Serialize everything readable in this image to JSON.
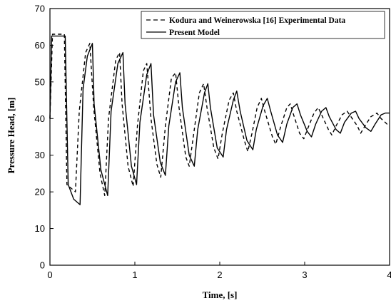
{
  "chart_data": {
    "type": "line",
    "title": "",
    "xlabel": "Time, [s]",
    "ylabel": "Pressure Head, [m]",
    "xlim": [
      0,
      4
    ],
    "ylim": [
      0,
      70
    ],
    "x_ticks": [
      0,
      1,
      2,
      3,
      4
    ],
    "y_ticks": [
      0,
      10,
      20,
      30,
      40,
      50,
      60,
      70
    ],
    "grid": false,
    "legend_position": "top-right",
    "series": [
      {
        "name": "Kodura and Weinerowska [16] Experimental Data",
        "style": "dashed",
        "color": "#000000",
        "points": [
          [
            0.0,
            40.0
          ],
          [
            0.03,
            63.0
          ],
          [
            0.17,
            63.0
          ],
          [
            0.2,
            22.0
          ],
          [
            0.3,
            20.0
          ],
          [
            0.345,
            42.0
          ],
          [
            0.42,
            58.0
          ],
          [
            0.47,
            60.5
          ],
          [
            0.515,
            43.0
          ],
          [
            0.59,
            25.0
          ],
          [
            0.645,
            19.0
          ],
          [
            0.69,
            40.0
          ],
          [
            0.775,
            56.0
          ],
          [
            0.82,
            58.0
          ],
          [
            0.85,
            44.0
          ],
          [
            0.92,
            27.0
          ],
          [
            0.98,
            21.5
          ],
          [
            1.03,
            38.0
          ],
          [
            1.1,
            53.0
          ],
          [
            1.14,
            55.0
          ],
          [
            1.19,
            40.0
          ],
          [
            1.26,
            27.5
          ],
          [
            1.305,
            24.0
          ],
          [
            1.36,
            38.0
          ],
          [
            1.43,
            51.0
          ],
          [
            1.48,
            52.5
          ],
          [
            1.52,
            43.0
          ],
          [
            1.6,
            29.5
          ],
          [
            1.64,
            27.0
          ],
          [
            1.7,
            37.0
          ],
          [
            1.76,
            47.0
          ],
          [
            1.81,
            49.5
          ],
          [
            1.85,
            43.0
          ],
          [
            1.93,
            32.0
          ],
          [
            1.98,
            29.0
          ],
          [
            2.03,
            36.0
          ],
          [
            2.11,
            45.0
          ],
          [
            2.16,
            47.0
          ],
          [
            2.2,
            42.0
          ],
          [
            2.29,
            34.0
          ],
          [
            2.33,
            31.0
          ],
          [
            2.38,
            36.0
          ],
          [
            2.44,
            43.0
          ],
          [
            2.49,
            45.5
          ],
          [
            2.53,
            42.0
          ],
          [
            2.62,
            35.0
          ],
          [
            2.66,
            33.0
          ],
          [
            2.72,
            38.0
          ],
          [
            2.79,
            43.0
          ],
          [
            2.83,
            44.0
          ],
          [
            2.87,
            41.0
          ],
          [
            2.94,
            36.0
          ],
          [
            2.99,
            34.5
          ],
          [
            3.04,
            37.5
          ],
          [
            3.11,
            41.5
          ],
          [
            3.16,
            43.0
          ],
          [
            3.2,
            41.0
          ],
          [
            3.28,
            37.0
          ],
          [
            3.32,
            35.5
          ],
          [
            3.37,
            38.0
          ],
          [
            3.44,
            41.0
          ],
          [
            3.5,
            42.0
          ],
          [
            3.53,
            41.0
          ],
          [
            3.62,
            38.0
          ],
          [
            3.66,
            36.0
          ],
          [
            3.71,
            38.0
          ],
          [
            3.78,
            40.5
          ],
          [
            3.85,
            41.5
          ],
          [
            3.9,
            40.0
          ],
          [
            3.97,
            38.5
          ],
          [
            4.0,
            38.5
          ]
        ]
      },
      {
        "name": "Present Model",
        "style": "solid",
        "color": "#000000",
        "points": [
          [
            0.0,
            40.0
          ],
          [
            0.02,
            62.5
          ],
          [
            0.18,
            62.5
          ],
          [
            0.215,
            22.0
          ],
          [
            0.28,
            18.0
          ],
          [
            0.355,
            16.5
          ],
          [
            0.39,
            48.0
          ],
          [
            0.44,
            57.0
          ],
          [
            0.5,
            60.5
          ],
          [
            0.52,
            44.0
          ],
          [
            0.6,
            26.0
          ],
          [
            0.68,
            19.0
          ],
          [
            0.72,
            42.0
          ],
          [
            0.8,
            55.0
          ],
          [
            0.86,
            58.0
          ],
          [
            0.885,
            44.0
          ],
          [
            0.96,
            27.0
          ],
          [
            1.02,
            22.0
          ],
          [
            1.06,
            39.0
          ],
          [
            1.14,
            52.0
          ],
          [
            1.19,
            55.0
          ],
          [
            1.22,
            41.0
          ],
          [
            1.3,
            28.0
          ],
          [
            1.36,
            24.5
          ],
          [
            1.4,
            38.0
          ],
          [
            1.48,
            50.0
          ],
          [
            1.53,
            52.5
          ],
          [
            1.56,
            43.0
          ],
          [
            1.64,
            30.0
          ],
          [
            1.7,
            27.0
          ],
          [
            1.74,
            37.0
          ],
          [
            1.82,
            47.0
          ],
          [
            1.86,
            49.5
          ],
          [
            1.89,
            43.0
          ],
          [
            1.97,
            32.0
          ],
          [
            2.04,
            29.5
          ],
          [
            2.08,
            37.0
          ],
          [
            2.16,
            45.0
          ],
          [
            2.2,
            47.5
          ],
          [
            2.24,
            42.0
          ],
          [
            2.32,
            34.0
          ],
          [
            2.39,
            31.5
          ],
          [
            2.43,
            37.0
          ],
          [
            2.51,
            43.5
          ],
          [
            2.56,
            45.5
          ],
          [
            2.6,
            42.0
          ],
          [
            2.68,
            35.5
          ],
          [
            2.74,
            33.5
          ],
          [
            2.79,
            38.5
          ],
          [
            2.86,
            43.0
          ],
          [
            2.91,
            44.0
          ],
          [
            2.95,
            41.0
          ],
          [
            3.03,
            36.5
          ],
          [
            3.08,
            35.0
          ],
          [
            3.13,
            38.5
          ],
          [
            3.2,
            42.0
          ],
          [
            3.25,
            43.0
          ],
          [
            3.29,
            40.5
          ],
          [
            3.37,
            37.0
          ],
          [
            3.42,
            36.0
          ],
          [
            3.47,
            39.0
          ],
          [
            3.55,
            41.5
          ],
          [
            3.6,
            42.0
          ],
          [
            3.64,
            40.0
          ],
          [
            3.72,
            37.5
          ],
          [
            3.78,
            36.5
          ],
          [
            3.83,
            38.5
          ],
          [
            3.9,
            41.0
          ],
          [
            3.95,
            41.5
          ],
          [
            4.0,
            41.5
          ]
        ]
      }
    ]
  }
}
